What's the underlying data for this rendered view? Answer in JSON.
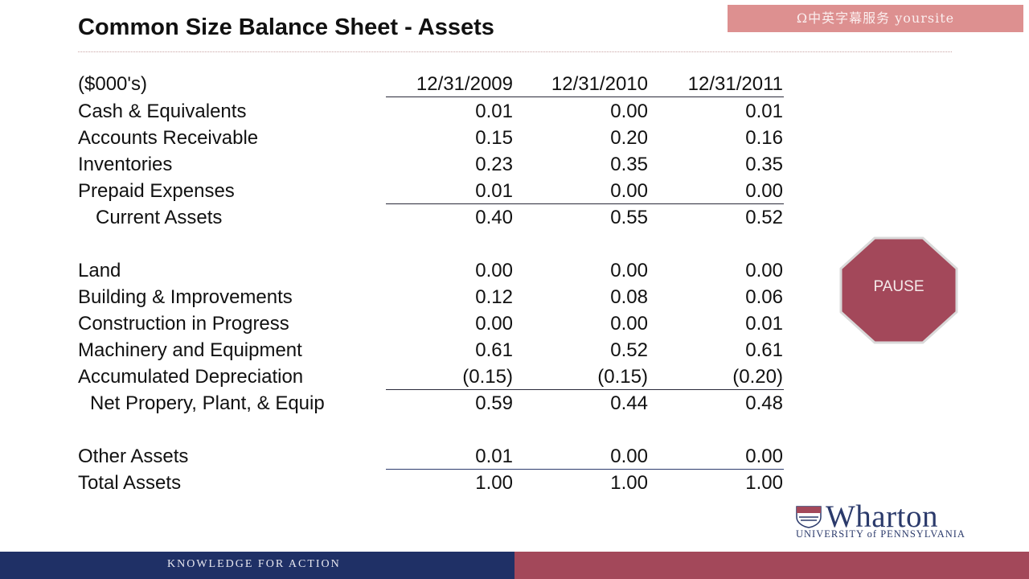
{
  "slide": {
    "title": "Common Size Balance Sheet - Assets",
    "watermark": "Ω中英字幕服务 yoursite"
  },
  "table": {
    "unit_label": "($000's)",
    "columns": [
      "12/31/2009",
      "12/31/2010",
      "12/31/2011"
    ],
    "rows": [
      {
        "label": "Cash & Equivalents",
        "values": [
          "0.01",
          "0.00",
          "0.01"
        ]
      },
      {
        "label": "Accounts Receivable",
        "values": [
          "0.15",
          "0.20",
          "0.16"
        ]
      },
      {
        "label": "Inventories",
        "values": [
          "0.23",
          "0.35",
          "0.35"
        ]
      },
      {
        "label": "Prepaid Expenses",
        "values": [
          "0.01",
          "0.00",
          "0.00"
        ]
      },
      {
        "label": "Current Assets",
        "values": [
          "0.40",
          "0.55",
          "0.52"
        ]
      },
      {
        "label": "Land",
        "values": [
          "0.00",
          "0.00",
          "0.00"
        ]
      },
      {
        "label": "Building & Improvements",
        "values": [
          "0.12",
          "0.08",
          "0.06"
        ]
      },
      {
        "label": "Construction in Progress",
        "values": [
          "0.00",
          "0.00",
          "0.01"
        ]
      },
      {
        "label": "Machinery and Equipment",
        "values": [
          "0.61",
          "0.52",
          "0.61"
        ]
      },
      {
        "label": "Accumulated Depreciation",
        "values": [
          "(0.15)",
          "(0.15)",
          "(0.20)"
        ]
      },
      {
        "label": "Net Propery, Plant, & Equip",
        "values": [
          "0.59",
          "0.44",
          "0.48"
        ]
      },
      {
        "label": "Other Assets",
        "values": [
          "0.01",
          "0.00",
          "0.00"
        ]
      },
      {
        "label": "Total Assets",
        "values": [
          "1.00",
          "1.00",
          "1.00"
        ]
      }
    ]
  },
  "pause_sign": {
    "label": "PAUSE",
    "color": "#a3485a"
  },
  "logo": {
    "name": "Wharton",
    "subtitle": "UNIVERSITY of PENNSYLVANIA"
  },
  "footer": {
    "text": "KNOWLEDGE FOR ACTION",
    "left_color": "#1f3066",
    "right_color": "#a3485a"
  }
}
